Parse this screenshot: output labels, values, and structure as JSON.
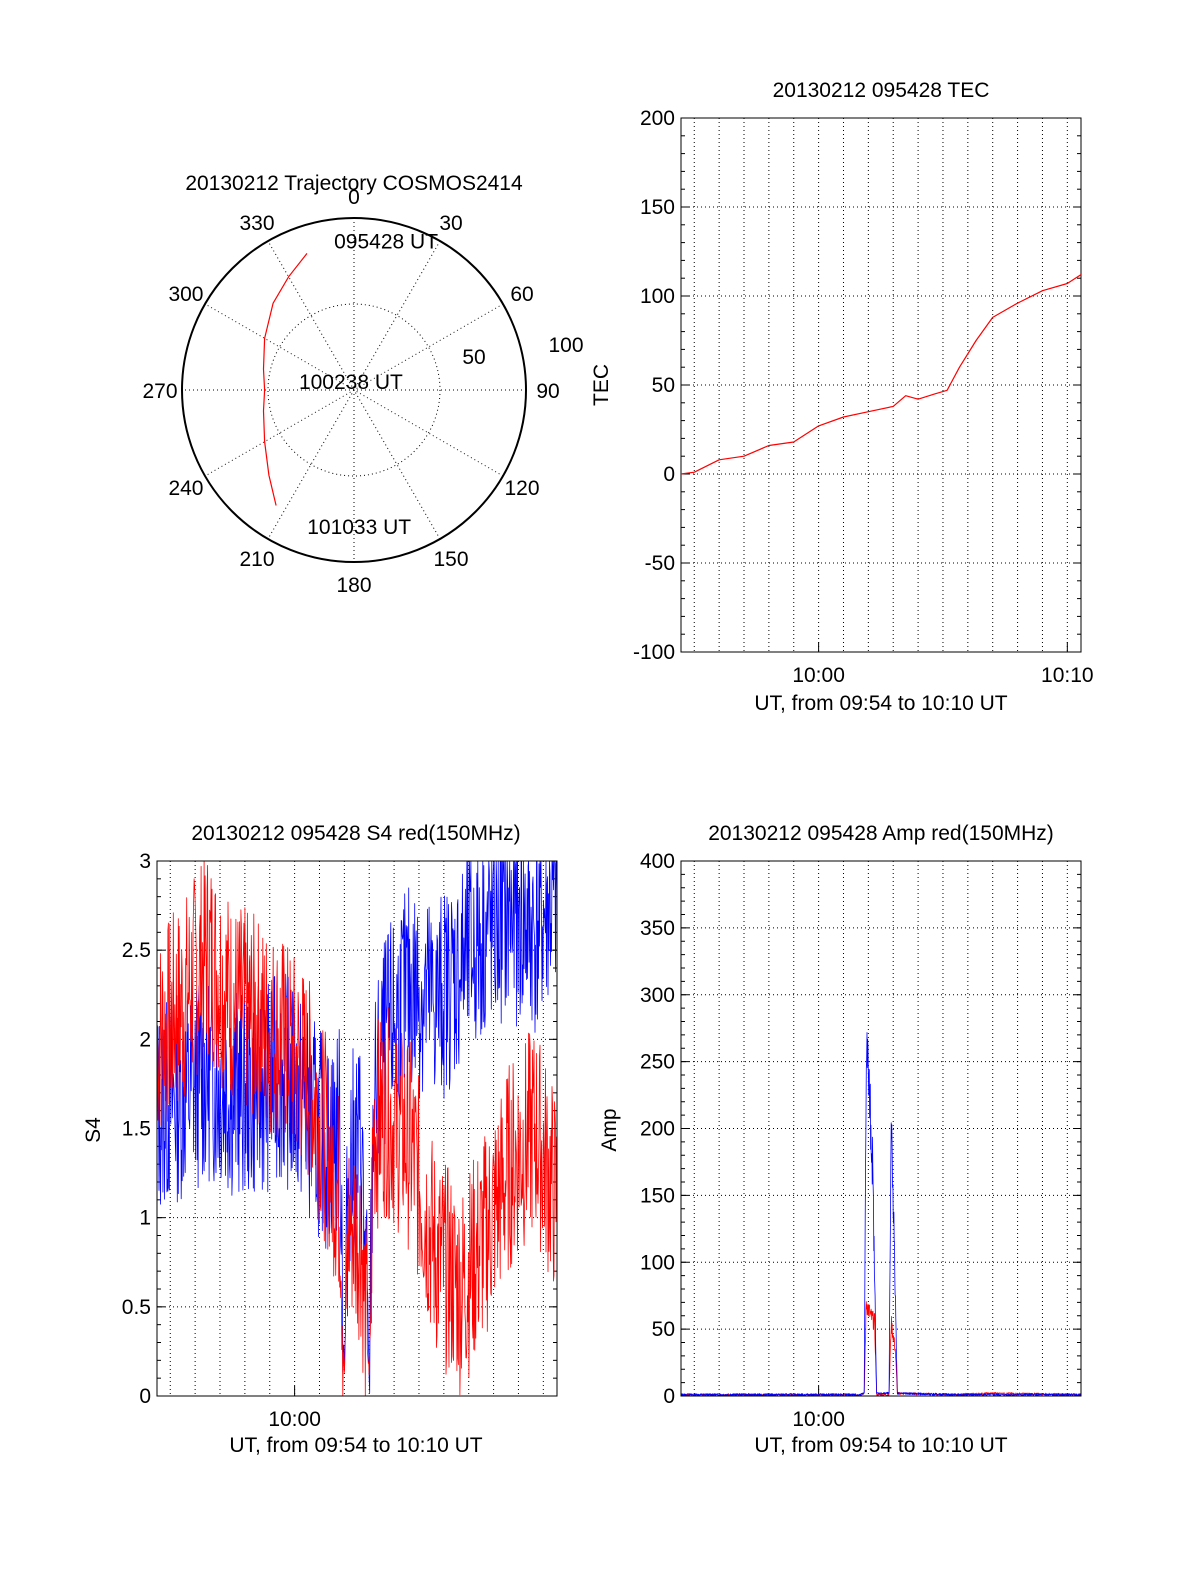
{
  "chart_data": [
    {
      "type": "polar",
      "title": "20130212 Trajectory COSMOS2414",
      "angle_labels": [
        "0",
        "30",
        "60",
        "90",
        "120",
        "150",
        "180",
        "210",
        "240",
        "270",
        "300",
        "330"
      ],
      "radius_labels": [
        "50",
        "100"
      ],
      "radius_max": 100,
      "grid": true,
      "series": [
        {
          "color": "#ff0000",
          "points": [
            {
              "az": 341,
              "r": 84
            },
            {
              "az": 330,
              "r": 76
            },
            {
              "az": 317,
              "r": 69
            },
            {
              "az": 300,
              "r": 60
            },
            {
              "az": 283,
              "r": 54
            },
            {
              "az": 270,
              "r": 52
            },
            {
              "az": 257,
              "r": 54
            },
            {
              "az": 240,
              "r": 60
            },
            {
              "az": 225,
              "r": 70
            },
            {
              "az": 214,
              "r": 81
            }
          ]
        }
      ],
      "annotations": [
        {
          "text": "095428 UT",
          "az": 352,
          "r": 83
        },
        {
          "text": "100238 UT",
          "az": 271,
          "r": 32
        },
        {
          "text": "101033 UT",
          "az": 198,
          "r": 88
        }
      ]
    },
    {
      "type": "line",
      "title": "20130212 095428 TEC",
      "xlabel": "UT, from 09:54 to 10:10 UT",
      "ylabel": "TEC",
      "xlim": [
        "09:54:28",
        "10:10:33"
      ],
      "ylim": [
        -100,
        200
      ],
      "yticks": [
        -100,
        -50,
        0,
        50,
        100,
        150,
        200
      ],
      "xticks": [
        "10:00",
        "10:10"
      ],
      "grid": true,
      "series": [
        {
          "color": "#ff0000",
          "x": [
            "09:54:28",
            "09:55:00",
            "09:56:00",
            "09:57:00",
            "09:58:00",
            "09:59:00",
            "10:00:00",
            "10:01:00",
            "10:02:00",
            "10:03:00",
            "10:03:30",
            "10:04:00",
            "10:04:40",
            "10:05:10",
            "10:05:40",
            "10:06:20",
            "10:07:00",
            "10:08:00",
            "10:09:00",
            "10:10:00",
            "10:10:33"
          ],
          "y": [
            0,
            1,
            8,
            10,
            16,
            18,
            27,
            32,
            35,
            38,
            44,
            42,
            45,
            47,
            60,
            75,
            88,
            96,
            103,
            107,
            112
          ]
        }
      ]
    },
    {
      "type": "line",
      "title": "20130212 095428 S4 red(150MHz)",
      "xlabel": "UT, from 09:54 to 10:10 UT",
      "ylabel": "S4",
      "xlim": [
        "09:54:28",
        "10:10:33"
      ],
      "ylim": [
        0,
        3
      ],
      "yticks": [
        "0",
        "0.5",
        "1",
        "1.5",
        "2",
        "2.5",
        "3"
      ],
      "xticks": [
        "10:00"
      ],
      "grid": true,
      "series": [
        {
          "color": "#0000ff",
          "x": [
            "09:54:28",
            "09:55:30",
            "09:56:30",
            "09:57:30",
            "09:58:30",
            "09:59:30",
            "10:00:30",
            "10:01:20",
            "10:01:50",
            "10:02:00",
            "10:02:10",
            "10:02:40",
            "10:03:00",
            "10:03:10",
            "10:03:40",
            "10:04:40",
            "10:05:40",
            "10:06:40",
            "10:07:40",
            "10:08:40",
            "10:09:40",
            "10:10:33"
          ],
          "y": [
            1.6,
            1.7,
            1.8,
            1.7,
            1.7,
            1.8,
            1.6,
            1.4,
            1.5,
            0.12,
            1.3,
            1.45,
            0.12,
            1.6,
            2.0,
            2.3,
            2.2,
            2.4,
            2.6,
            2.7,
            2.6,
            2.8
          ]
        },
        {
          "color": "#ff0000",
          "x": [
            "09:54:28",
            "09:55:30",
            "09:56:30",
            "09:57:30",
            "09:58:30",
            "09:59:30",
            "10:00:30",
            "10:01:20",
            "10:01:50",
            "10:02:00",
            "10:02:10",
            "10:02:40",
            "10:03:00",
            "10:03:10",
            "10:03:40",
            "10:04:40",
            "10:05:40",
            "10:06:40",
            "10:07:40",
            "10:08:40",
            "10:09:40",
            "10:10:33"
          ],
          "y": [
            2.0,
            2.2,
            2.5,
            2.2,
            2.1,
            2.0,
            1.8,
            1.4,
            1.1,
            0.1,
            1.0,
            0.9,
            0.1,
            1.5,
            1.6,
            1.4,
            0.8,
            0.6,
            0.9,
            1.3,
            1.5,
            1.1
          ]
        }
      ]
    },
    {
      "type": "line",
      "title": "20130212 095428 Amp red(150MHz)",
      "xlabel": "UT, from 09:54 to 10:10 UT",
      "ylabel": "Amp",
      "xlim": [
        "09:54:28",
        "10:10:33"
      ],
      "ylim": [
        0,
        400
      ],
      "yticks": [
        0,
        50,
        100,
        150,
        200,
        250,
        300,
        350,
        400
      ],
      "xticks": [
        "10:00"
      ],
      "grid": true,
      "series": [
        {
          "color": "#ff0000",
          "x": [
            "09:54:28",
            "10:01:40",
            "10:01:50",
            "10:01:55",
            "10:02:05",
            "10:02:15",
            "10:02:20",
            "10:02:50",
            "10:02:55",
            "10:03:05",
            "10:03:10",
            "10:05:30",
            "10:07:00",
            "10:10:33"
          ],
          "y": [
            1,
            1,
            2,
            70,
            60,
            55,
            1,
            1,
            55,
            35,
            2,
            1,
            2,
            1
          ]
        },
        {
          "color": "#0000ff",
          "x": [
            "09:54:28",
            "10:01:40",
            "10:01:50",
            "10:01:55",
            "10:02:00",
            "10:02:10",
            "10:02:20",
            "10:02:50",
            "10:02:55",
            "10:03:00",
            "10:03:10",
            "10:05:30",
            "10:10:33"
          ],
          "y": [
            1,
            1,
            2,
            265,
            240,
            175,
            2,
            2,
            210,
            150,
            2,
            1,
            1
          ]
        }
      ]
    }
  ]
}
